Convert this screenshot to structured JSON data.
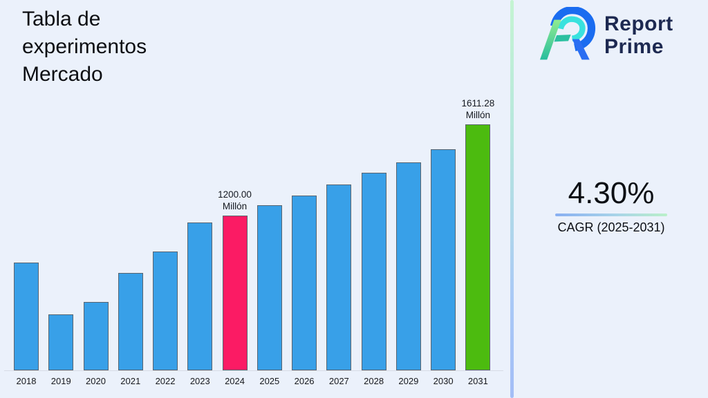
{
  "page": {
    "background": "#ebf1fb"
  },
  "header": {
    "title": "Tabla de experimentos Mercado"
  },
  "logo": {
    "line1": "Report",
    "line2": "Prime",
    "text_color": "#1d2951"
  },
  "cagr": {
    "value": "4.30%",
    "label": "CAGR (2025-2031)",
    "underline_from": "#88aff2",
    "underline_to": "#baf0c9"
  },
  "chart_data": {
    "type": "bar",
    "title": "Tabla de experimentos Mercado",
    "unit": "Millón",
    "categories": [
      "2018",
      "2019",
      "2020",
      "2021",
      "2022",
      "2023",
      "2024",
      "2025",
      "2026",
      "2027",
      "2028",
      "2029",
      "2030",
      "2031"
    ],
    "values": [
      987,
      753,
      809,
      941,
      1037,
      1169,
      1200.0,
      1247,
      1291,
      1341,
      1394,
      1441,
      1500,
      1611.28
    ],
    "ylim": [
      500,
      1700
    ],
    "grid": false,
    "legend": false,
    "bar_color": "#38a0e8",
    "bar_border_color": "#59646f",
    "highlight_colors": {
      "2024": "#fb1b64",
      "2031": "#4cbb0f"
    },
    "annotations": {
      "2024": {
        "line1": "1200.00",
        "line2": "Millón"
      },
      "2031": {
        "line1": "1611.28",
        "line2": "Millón"
      }
    }
  }
}
